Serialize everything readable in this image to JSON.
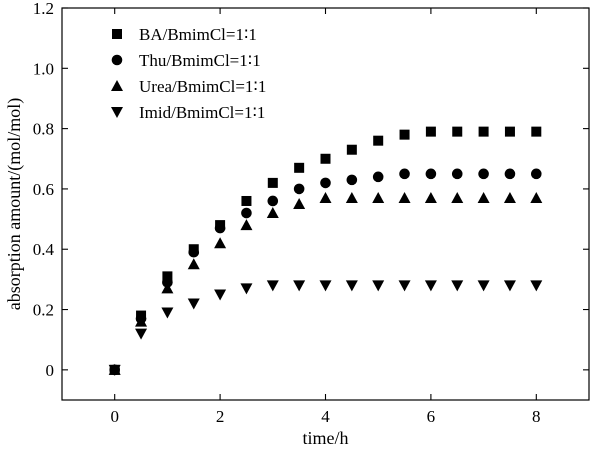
{
  "chart_data": {
    "type": "scatter",
    "title": "",
    "xlabel": "time/h",
    "ylabel": "absorption amount/(mol/mol)",
    "xlim": [
      -1,
      9
    ],
    "ylim": [
      -0.1,
      1.2
    ],
    "xticks": [
      0,
      2,
      4,
      6,
      8
    ],
    "xtick_labels": [
      "0",
      "2",
      "4",
      "6",
      "8"
    ],
    "yticks": [
      0,
      0.2,
      0.4,
      0.6,
      0.8,
      1.0,
      1.2
    ],
    "ytick_labels": [
      "0",
      "0.2",
      "0.4",
      "0.6",
      "0.8",
      "1.0",
      "1.2"
    ],
    "legend_position": "top-left",
    "grid": false,
    "x": [
      0,
      0.5,
      1,
      1.5,
      2,
      2.5,
      3,
      3.5,
      4,
      4.5,
      5,
      5.5,
      6,
      6.5,
      7,
      7.5,
      8
    ],
    "series": [
      {
        "name": "BA/BmimCl=1∶1",
        "marker": "square",
        "color": "#000000",
        "values": [
          0,
          0.18,
          0.31,
          0.4,
          0.48,
          0.56,
          0.62,
          0.67,
          0.7,
          0.73,
          0.76,
          0.78,
          0.79,
          0.79,
          0.79,
          0.79,
          0.79
        ]
      },
      {
        "name": "Thu/BmimCl=1∶1",
        "marker": "circle",
        "color": "#000000",
        "values": [
          0,
          0.17,
          0.29,
          0.39,
          0.47,
          0.52,
          0.56,
          0.6,
          0.62,
          0.63,
          0.64,
          0.65,
          0.65,
          0.65,
          0.65,
          0.65,
          0.65
        ]
      },
      {
        "name": "Urea/BmimCl=1∶1",
        "marker": "triangle-up",
        "color": "#000000",
        "values": [
          0,
          0.16,
          0.27,
          0.35,
          0.42,
          0.48,
          0.52,
          0.55,
          0.57,
          0.57,
          0.57,
          0.57,
          0.57,
          0.57,
          0.57,
          0.57,
          0.57
        ]
      },
      {
        "name": "Imid/BmimCl=1∶1",
        "marker": "triangle-down",
        "color": "#000000",
        "values": [
          0,
          0.12,
          0.19,
          0.22,
          0.25,
          0.27,
          0.28,
          0.28,
          0.28,
          0.28,
          0.28,
          0.28,
          0.28,
          0.28,
          0.28,
          0.28,
          0.28
        ]
      }
    ]
  }
}
